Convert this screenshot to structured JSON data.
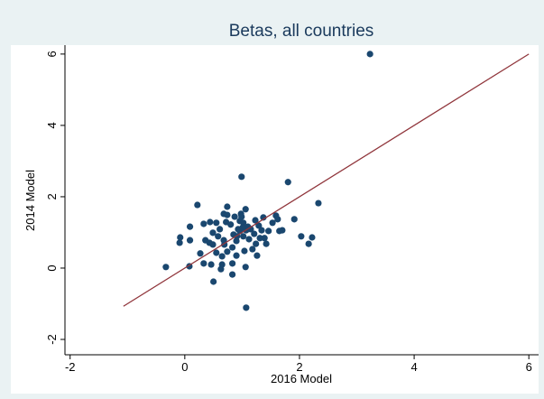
{
  "chart_data": {
    "type": "scatter",
    "title": "Betas, all countries",
    "x_label": "2016 Model",
    "y_label": "2014 Model",
    "xlim": [
      -2.09,
      6.17
    ],
    "ylim": [
      -2.43,
      6.25
    ],
    "xticks": [
      -2,
      0,
      2,
      4,
      6
    ],
    "yticks": [
      -2,
      0,
      2,
      4,
      6
    ],
    "series": [
      {
        "name": "points",
        "color": "#1a476f",
        "x": [
          3.23,
          -0.33,
          0.08,
          -0.09,
          0.09,
          0.22,
          0.99,
          1.8,
          2.33,
          1.91,
          2.03,
          2.22,
          2.16,
          1.07,
          0.5,
          0.83,
          0.63,
          1.06,
          0.46,
          0.33,
          0.27,
          0.36,
          0.33,
          0.44,
          0.55,
          0.49,
          0.61,
          0.68,
          0.72,
          0.74,
          0.74,
          0.8,
          0.85,
          0.87,
          0.9,
          0.93,
          0.96,
          0.98,
          0.99,
          1.02,
          1.02,
          1.06,
          1.07,
          1.1,
          1.12,
          1.15,
          1.18,
          1.21,
          1.23,
          1.24,
          1.29,
          1.31,
          1.34,
          1.37,
          1.39,
          1.46,
          1.53,
          1.59,
          1.62,
          1.65,
          1.7,
          1.42,
          1.26,
          1.04,
          0.9,
          0.74,
          0.65,
          0.69,
          0.83,
          0.68,
          0.58,
          0.55,
          0.43,
          0.65,
          0.83,
          0.91,
          0.96,
          1.01,
          0.49,
          0.09,
          -0.08
        ],
        "y": [
          6.0,
          0.03,
          0.05,
          0.71,
          0.78,
          1.77,
          2.56,
          2.41,
          1.82,
          1.37,
          0.89,
          0.86,
          0.68,
          -1.11,
          -0.38,
          -0.18,
          -0.03,
          0.03,
          0.1,
          0.13,
          0.41,
          0.78,
          1.24,
          1.29,
          1.27,
          0.66,
          1.09,
          1.52,
          1.29,
          1.49,
          1.72,
          1.22,
          0.94,
          1.44,
          0.76,
          1.09,
          1.32,
          1.52,
          1.44,
          1.27,
          0.89,
          1.65,
          1.06,
          1.16,
          0.81,
          1.09,
          0.53,
          0.96,
          1.34,
          0.68,
          1.19,
          0.84,
          1.06,
          1.42,
          0.84,
          1.04,
          1.27,
          1.47,
          1.37,
          1.04,
          1.06,
          0.68,
          0.35,
          0.48,
          0.35,
          0.46,
          0.33,
          0.66,
          0.58,
          0.78,
          0.89,
          0.43,
          0.71,
          0.1,
          0.13,
          0.89,
          1.04,
          1.14,
          0.99,
          1.16,
          0.86
        ]
      },
      {
        "name": "fit",
        "type": "line",
        "color": "#90353b",
        "x": [
          -1.07,
          6
        ],
        "y": [
          -1.07,
          6
        ]
      }
    ]
  }
}
